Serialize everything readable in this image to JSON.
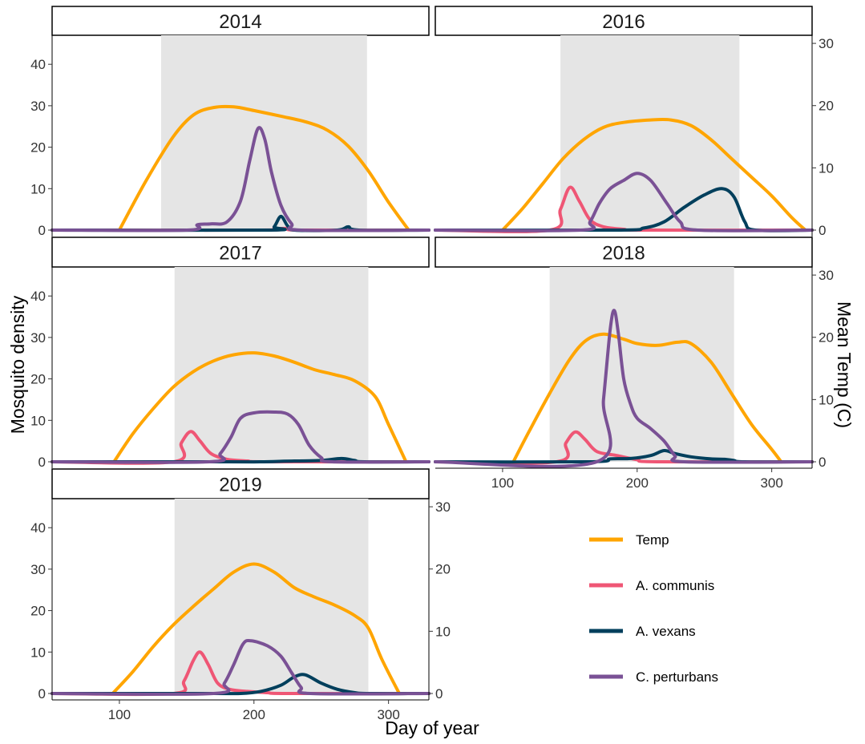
{
  "chart_data": {
    "type": "line",
    "xlabel": "Day of year",
    "ylabel": "Mosquito density",
    "y2label": "Mean Temp (C)",
    "xlim": [
      50,
      330
    ],
    "ylim": [
      0,
      47
    ],
    "y2lim": [
      0,
      31.3
    ],
    "x_ticks": [
      100,
      200,
      300
    ],
    "y_ticks": [
      0,
      10,
      20,
      30,
      40
    ],
    "y2_ticks": [
      0,
      10,
      20,
      30
    ],
    "legend": [
      {
        "name": "Temp",
        "color": "#ffa500"
      },
      {
        "name": "A. communis",
        "color": "#ef5675"
      },
      {
        "name": "A. vexans",
        "color": "#003f5c"
      },
      {
        "name": "C. perturbans",
        "color": "#7a5195"
      }
    ],
    "panels": [
      {
        "title": "2014",
        "shade": [
          131,
          284
        ],
        "temp": [
          [
            100,
            0
          ],
          [
            120,
            8
          ],
          [
            140,
            15
          ],
          [
            155,
            18.5
          ],
          [
            170,
            19.7
          ],
          [
            185,
            19.8
          ],
          [
            200,
            19.2
          ],
          [
            220,
            18.3
          ],
          [
            240,
            17.3
          ],
          [
            255,
            16
          ],
          [
            270,
            13.5
          ],
          [
            285,
            9.5
          ],
          [
            300,
            4.5
          ],
          [
            315,
            0
          ]
        ],
        "species": [
          {
            "name": "A. communis",
            "points": [
              [
                50,
                0
              ],
              [
                205,
                0
              ],
              [
                215,
                0.3
              ],
              [
                225,
                0.4
              ],
              [
                235,
                0
              ],
              [
                330,
                0
              ]
            ]
          },
          {
            "name": "A. vexans",
            "points": [
              [
                50,
                0
              ],
              [
                210,
                0
              ],
              [
                215,
                0.8
              ],
              [
                220,
                3.3
              ],
              [
                225,
                1
              ],
              [
                230,
                0
              ],
              [
                262,
                0
              ],
              [
                270,
                0.8
              ],
              [
                278,
                0
              ],
              [
                330,
                0
              ]
            ]
          },
          {
            "name": "C. perturbans",
            "points": [
              [
                50,
                0
              ],
              [
                150,
                0
              ],
              [
                158,
                1.3
              ],
              [
                168,
                1.5
              ],
              [
                180,
                2
              ],
              [
                190,
                7
              ],
              [
                197,
                17
              ],
              [
                203,
                24.5
              ],
              [
                208,
                22
              ],
              [
                213,
                14
              ],
              [
                220,
                6
              ],
              [
                228,
                1.5
              ],
              [
                235,
                0
              ],
              [
                330,
                0
              ]
            ]
          }
        ]
      },
      {
        "title": "2016",
        "shade": [
          143,
          276
        ],
        "temp": [
          [
            100,
            0
          ],
          [
            115,
            3.5
          ],
          [
            130,
            7.5
          ],
          [
            145,
            11.5
          ],
          [
            160,
            14.5
          ],
          [
            175,
            16.5
          ],
          [
            190,
            17.3
          ],
          [
            210,
            17.7
          ],
          [
            225,
            17.7
          ],
          [
            240,
            16.8
          ],
          [
            255,
            14.5
          ],
          [
            270,
            11.5
          ],
          [
            285,
            8.5
          ],
          [
            300,
            5.5
          ],
          [
            315,
            2
          ],
          [
            325,
            0
          ]
        ],
        "species": [
          {
            "name": "A. communis",
            "points": [
              [
                50,
                0
              ],
              [
                135,
                0
              ],
              [
                143,
                5
              ],
              [
                150,
                10.3
              ],
              [
                157,
                7
              ],
              [
                165,
                2.5
              ],
              [
                175,
                0.8
              ],
              [
                190,
                0.2
              ],
              [
                205,
                0
              ],
              [
                330,
                0
              ]
            ]
          },
          {
            "name": "A. vexans",
            "points": [
              [
                50,
                0
              ],
              [
                185,
                0
              ],
              [
                205,
                0.5
              ],
              [
                220,
                2
              ],
              [
                235,
                5.5
              ],
              [
                250,
                8.5
              ],
              [
                263,
                10
              ],
              [
                272,
                8
              ],
              [
                280,
                2
              ],
              [
                288,
                0
              ],
              [
                330,
                0
              ]
            ]
          },
          {
            "name": "C. perturbans",
            "points": [
              [
                50,
                0
              ],
              [
                158,
                0
              ],
              [
                165,
                2
              ],
              [
                172,
                6.5
              ],
              [
                180,
                10
              ],
              [
                190,
                12
              ],
              [
                200,
                13.7
              ],
              [
                210,
                12
              ],
              [
                222,
                6.5
              ],
              [
                232,
                2
              ],
              [
                245,
                0
              ],
              [
                330,
                0
              ]
            ]
          }
        ]
      },
      {
        "title": "2017",
        "shade": [
          141,
          285
        ],
        "temp": [
          [
            96,
            0
          ],
          [
            110,
            4.5
          ],
          [
            125,
            8.5
          ],
          [
            140,
            12
          ],
          [
            155,
            14.5
          ],
          [
            170,
            16.2
          ],
          [
            185,
            17.2
          ],
          [
            200,
            17.5
          ],
          [
            215,
            17
          ],
          [
            230,
            16
          ],
          [
            245,
            14.8
          ],
          [
            260,
            14
          ],
          [
            275,
            13
          ],
          [
            290,
            10.5
          ],
          [
            300,
            6
          ],
          [
            313,
            0
          ]
        ],
        "species": [
          {
            "name": "A. communis",
            "points": [
              [
                50,
                0
              ],
              [
                140,
                0
              ],
              [
                146,
                4.5
              ],
              [
                153,
                7.3
              ],
              [
                160,
                5
              ],
              [
                168,
                2
              ],
              [
                180,
                0.6
              ],
              [
                195,
                0.2
              ],
              [
                210,
                0
              ],
              [
                330,
                0
              ]
            ]
          },
          {
            "name": "A. vexans",
            "points": [
              [
                50,
                0
              ],
              [
                180,
                0
              ],
              [
                205,
                0
              ],
              [
                230,
                0.2
              ],
              [
                250,
                0.3
              ],
              [
                265,
                0.8
              ],
              [
                275,
                0.3
              ],
              [
                282,
                0
              ],
              [
                330,
                0
              ]
            ]
          },
          {
            "name": "C. perturbans",
            "points": [
              [
                50,
                0
              ],
              [
                167,
                0
              ],
              [
                175,
                2
              ],
              [
                183,
                6
              ],
              [
                190,
                10.5
              ],
              [
                200,
                11.8
              ],
              [
                215,
                12
              ],
              [
                225,
                11.5
              ],
              [
                233,
                9
              ],
              [
                241,
                4
              ],
              [
                250,
                1
              ],
              [
                258,
                0
              ],
              [
                330,
                0
              ]
            ]
          }
        ]
      },
      {
        "title": "2018",
        "shade": [
          135,
          272
        ],
        "temp": [
          [
            108,
            0
          ],
          [
            120,
            5
          ],
          [
            135,
            11
          ],
          [
            150,
            16.5
          ],
          [
            162,
            19.5
          ],
          [
            175,
            20.5
          ],
          [
            190,
            19.7
          ],
          [
            200,
            19
          ],
          [
            215,
            18.7
          ],
          [
            230,
            19.2
          ],
          [
            240,
            19
          ],
          [
            255,
            16
          ],
          [
            270,
            11
          ],
          [
            285,
            6
          ],
          [
            300,
            2
          ],
          [
            307,
            0
          ]
        ],
        "species": [
          {
            "name": "A. communis",
            "points": [
              [
                50,
                0
              ],
              [
                140,
                0
              ],
              [
                147,
                4.5
              ],
              [
                154,
                7.2
              ],
              [
                161,
                5.5
              ],
              [
                170,
                2.5
              ],
              [
                185,
                1.5
              ],
              [
                200,
                0.5
              ],
              [
                215,
                0
              ],
              [
                330,
                0
              ]
            ]
          },
          {
            "name": "A. vexans",
            "points": [
              [
                50,
                0
              ],
              [
                165,
                0
              ],
              [
                180,
                0.7
              ],
              [
                195,
                0.8
              ],
              [
                210,
                1.5
              ],
              [
                220,
                2.7
              ],
              [
                228,
                2
              ],
              [
                240,
                1.2
              ],
              [
                255,
                0.7
              ],
              [
                265,
                0.6
              ],
              [
                272,
                0.3
              ],
              [
                280,
                0
              ],
              [
                330,
                0
              ]
            ]
          },
          {
            "name": "C. perturbans",
            "points": [
              [
                50,
                0
              ],
              [
                170,
                0
              ],
              [
                175,
                15
              ],
              [
                180,
                32
              ],
              [
                183,
                36.5
              ],
              [
                186,
                31
              ],
              [
                190,
                20
              ],
              [
                195,
                14
              ],
              [
                200,
                10.5
              ],
              [
                210,
                8
              ],
              [
                220,
                5
              ],
              [
                228,
                1.5
              ],
              [
                235,
                0
              ],
              [
                330,
                0
              ]
            ]
          }
        ]
      },
      {
        "title": "2019",
        "shade": [
          141,
          285
        ],
        "temp": [
          [
            95,
            0
          ],
          [
            110,
            3.5
          ],
          [
            125,
            7.5
          ],
          [
            140,
            11
          ],
          [
            155,
            14
          ],
          [
            170,
            16.8
          ],
          [
            185,
            19.5
          ],
          [
            200,
            20.8
          ],
          [
            215,
            19.5
          ],
          [
            230,
            17
          ],
          [
            245,
            15.5
          ],
          [
            260,
            14.2
          ],
          [
            275,
            12.5
          ],
          [
            285,
            10.5
          ],
          [
            295,
            5.5
          ],
          [
            308,
            0
          ]
        ],
        "species": [
          {
            "name": "A. communis",
            "points": [
              [
                50,
                0
              ],
              [
                140,
                0
              ],
              [
                148,
                3
              ],
              [
                155,
                8
              ],
              [
                160,
                10
              ],
              [
                166,
                7
              ],
              [
                173,
                2.5
              ],
              [
                182,
                1
              ],
              [
                195,
                0.5
              ],
              [
                210,
                0.2
              ],
              [
                225,
                0
              ],
              [
                330,
                0
              ]
            ]
          },
          {
            "name": "A. vexans",
            "points": [
              [
                50,
                0
              ],
              [
                170,
                0
              ],
              [
                190,
                0
              ],
              [
                205,
                0.5
              ],
              [
                220,
                2
              ],
              [
                230,
                4
              ],
              [
                238,
                4.5
              ],
              [
                250,
                2.5
              ],
              [
                262,
                1
              ],
              [
                275,
                0.2
              ],
              [
                285,
                0
              ],
              [
                330,
                0
              ]
            ]
          },
          {
            "name": "C. perturbans",
            "points": [
              [
                50,
                0
              ],
              [
                170,
                0
              ],
              [
                178,
                2.5
              ],
              [
                185,
                7
              ],
              [
                192,
                12
              ],
              [
                198,
                12.7
              ],
              [
                210,
                11.5
              ],
              [
                220,
                9
              ],
              [
                228,
                5
              ],
              [
                235,
                1.5
              ],
              [
                242,
                0
              ],
              [
                330,
                0
              ]
            ]
          }
        ]
      }
    ]
  }
}
